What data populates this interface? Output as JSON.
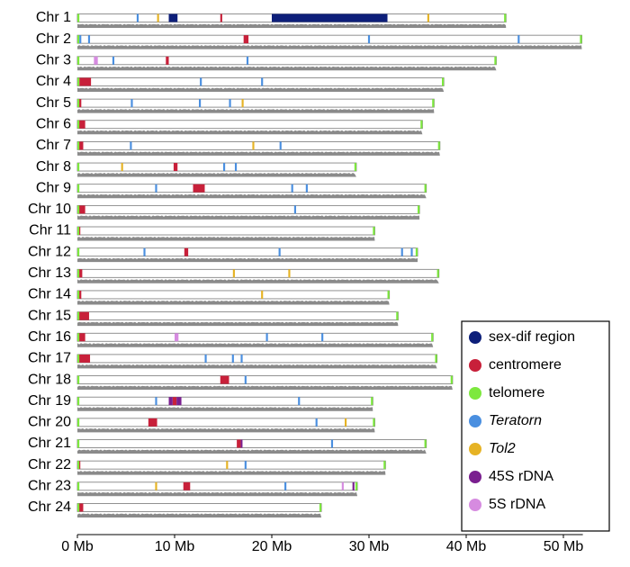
{
  "chart_data": {
    "type": "ideogram",
    "categories": [
      "Chr 1",
      "Chr 2",
      "Chr 3",
      "Chr 4",
      "Chr 5",
      "Chr 6",
      "Chr 7",
      "Chr 8",
      "Chr 9",
      "Chr 10",
      "Chr 11",
      "Chr 12",
      "Chr 13",
      "Chr 14",
      "Chr 15",
      "Chr 16",
      "Chr 17",
      "Chr 18",
      "Chr 19",
      "Chr 20",
      "Chr 21",
      "Chr 22",
      "Chr 23",
      "Chr 24"
    ],
    "values": [
      44.1,
      51.9,
      43.1,
      37.7,
      36.7,
      35.5,
      37.3,
      28.7,
      35.9,
      35.2,
      30.6,
      35.0,
      37.2,
      32.1,
      33.0,
      36.6,
      37.0,
      38.6,
      30.4,
      30.6,
      35.9,
      31.7,
      28.8,
      25.1
    ],
    "xlim": [
      0,
      52
    ],
    "xticks": [
      {
        "value": 0,
        "label": "0 Mb"
      },
      {
        "value": 10,
        "label": "10 Mb"
      },
      {
        "value": 20,
        "label": "20 Mb"
      },
      {
        "value": 30,
        "label": "30 Mb"
      },
      {
        "value": 40,
        "label": "40 Mb"
      },
      {
        "value": 50,
        "label": "50 Mb"
      }
    ],
    "series": [
      {
        "name": "sex-dif region",
        "color": "#0d1f7a",
        "font_style": "normal",
        "regions": [
          [
            [
              9.4,
              10.3
            ],
            [
              20.0,
              31.9
            ]
          ],
          [],
          [],
          [],
          [],
          [],
          [],
          [],
          [],
          [],
          [],
          [],
          [],
          [],
          [],
          [],
          [],
          [],
          [],
          [],
          [],
          [],
          [],
          []
        ]
      },
      {
        "name": "centromere",
        "color": "#c8203a",
        "font_style": "normal",
        "regions": [
          [
            [
              14.7,
              14.9
            ]
          ],
          [
            [
              17.1,
              17.6
            ]
          ],
          [
            [
              9.1,
              9.4
            ]
          ],
          [
            [
              0.2,
              1.4
            ]
          ],
          [
            [
              0.1,
              0.4
            ]
          ],
          [
            [
              0.1,
              0.8
            ]
          ],
          [
            [
              0.1,
              0.6
            ]
          ],
          [
            [
              9.9,
              10.3
            ]
          ],
          [
            [
              11.9,
              13.1
            ]
          ],
          [
            [
              0.1,
              0.8
            ]
          ],
          [
            [
              0.1,
              0.3
            ]
          ],
          [
            [
              11.0,
              11.4
            ]
          ],
          [
            [
              0.1,
              0.5
            ]
          ],
          [
            [
              0.1,
              0.4
            ]
          ],
          [
            [
              0.1,
              1.2
            ]
          ],
          [
            [
              0.1,
              0.8
            ]
          ],
          [
            [
              0.1,
              1.3
            ]
          ],
          [
            [
              14.7,
              15.6
            ]
          ],
          [
            [
              9.8,
              10.2
            ]
          ],
          [
            [
              7.3,
              8.2
            ]
          ],
          [
            [
              16.4,
              16.8
            ]
          ],
          [
            [
              0.1,
              0.3
            ]
          ],
          [
            [
              10.9,
              11.6
            ]
          ],
          [
            [
              0.1,
              0.6
            ]
          ]
        ]
      },
      {
        "name": "telomere",
        "color": "#7de83e",
        "font_style": "normal",
        "regions": [
          [
            [
              0,
              0.2
            ],
            [
              43.9,
              44.1
            ]
          ],
          [
            [
              0,
              0.2
            ],
            [
              51.7,
              51.9
            ]
          ],
          [
            [
              0,
              0.2
            ],
            [
              42.9,
              43.1
            ]
          ],
          [
            [
              0,
              0.2
            ],
            [
              37.5,
              37.7
            ]
          ],
          [
            [
              0,
              0.2
            ],
            [
              36.5,
              36.7
            ]
          ],
          [
            [
              0,
              0.2
            ],
            [
              35.3,
              35.5
            ]
          ],
          [
            [
              0,
              0.2
            ],
            [
              37.1,
              37.3
            ]
          ],
          [
            [
              0,
              0.2
            ],
            [
              28.5,
              28.7
            ]
          ],
          [
            [
              0,
              0.2
            ],
            [
              35.7,
              35.9
            ]
          ],
          [
            [
              0,
              0.2
            ],
            [
              35.0,
              35.2
            ]
          ],
          [
            [
              0,
              0.2
            ],
            [
              30.4,
              30.6
            ]
          ],
          [
            [
              0,
              0.2
            ],
            [
              34.8,
              35.0
            ]
          ],
          [
            [
              0,
              0.2
            ],
            [
              37.0,
              37.2
            ]
          ],
          [
            [
              0,
              0.2
            ],
            [
              31.9,
              32.1
            ]
          ],
          [
            [
              0,
              0.2
            ],
            [
              32.8,
              33.0
            ]
          ],
          [
            [
              0,
              0.2
            ],
            [
              36.4,
              36.6
            ]
          ],
          [
            [
              0,
              0.2
            ],
            [
              36.8,
              37.0
            ]
          ],
          [
            [
              0,
              0.2
            ],
            [
              38.4,
              38.6
            ]
          ],
          [
            [
              0,
              0.2
            ],
            [
              30.2,
              30.4
            ]
          ],
          [
            [
              0,
              0.2
            ],
            [
              30.4,
              30.6
            ]
          ],
          [
            [
              0,
              0.2
            ],
            [
              35.7,
              35.9
            ]
          ],
          [
            [
              0,
              0.2
            ],
            [
              31.5,
              31.7
            ]
          ],
          [
            [
              0,
              0.2
            ],
            [
              28.6,
              28.8
            ]
          ],
          [
            [
              0,
              0.2
            ],
            [
              24.9,
              25.1
            ]
          ]
        ]
      },
      {
        "name": "Teratorn",
        "color": "#4a8fe0",
        "font_style": "italic",
        "regions": [
          [
            [
              6.1,
              6.3
            ]
          ],
          [
            [
              0.2,
              0.4
            ],
            [
              1.1,
              1.3
            ],
            [
              29.9,
              30.1
            ],
            [
              45.3,
              45.5
            ]
          ],
          [
            [
              3.6,
              3.8
            ],
            [
              17.4,
              17.6
            ]
          ],
          [
            [
              12.6,
              12.8
            ],
            [
              18.9,
              19.1
            ]
          ],
          [
            [
              5.5,
              5.7
            ],
            [
              12.5,
              12.7
            ],
            [
              15.6,
              15.8
            ]
          ],
          [],
          [
            [
              5.4,
              5.6
            ],
            [
              20.8,
              21.0
            ]
          ],
          [
            [
              15.0,
              15.2
            ],
            [
              16.2,
              16.4
            ]
          ],
          [
            [
              8.0,
              8.2
            ],
            [
              22.0,
              22.2
            ],
            [
              23.5,
              23.7
            ]
          ],
          [
            [
              22.3,
              22.5
            ]
          ],
          [],
          [
            [
              6.8,
              7.0
            ],
            [
              20.7,
              20.9
            ],
            [
              33.3,
              33.5
            ],
            [
              34.3,
              34.5
            ]
          ],
          [],
          [],
          [],
          [
            [
              19.4,
              19.6
            ],
            [
              25.1,
              25.3
            ]
          ],
          [
            [
              13.1,
              13.3
            ],
            [
              15.9,
              16.1
            ],
            [
              16.8,
              17.0
            ]
          ],
          [
            [
              17.2,
              17.4
            ]
          ],
          [
            [
              8.0,
              8.2
            ],
            [
              22.7,
              22.9
            ]
          ],
          [
            [
              24.5,
              24.7
            ]
          ],
          [
            [
              26.1,
              26.3
            ]
          ],
          [
            [
              17.2,
              17.4
            ]
          ],
          [
            [
              21.3,
              21.5
            ]
          ],
          []
        ]
      },
      {
        "name": "Tol2",
        "color": "#e6b325",
        "font_style": "italic",
        "regions": [
          [
            [
              8.2,
              8.4
            ],
            [
              36.0,
              36.2
            ]
          ],
          [],
          [],
          [],
          [
            [
              16.9,
              17.1
            ]
          ],
          [],
          [
            [
              18.0,
              18.2
            ]
          ],
          [
            [
              4.5,
              4.7
            ]
          ],
          [],
          [],
          [],
          [],
          [
            [
              16.0,
              16.2
            ],
            [
              21.7,
              21.9
            ]
          ],
          [
            [
              18.9,
              19.1
            ]
          ],
          [],
          [],
          [],
          [],
          [],
          [
            [
              27.5,
              27.7
            ]
          ],
          [],
          [
            [
              15.3,
              15.5
            ]
          ],
          [
            [
              8.0,
              8.2
            ]
          ],
          []
        ]
      },
      {
        "name": "45S rDNA",
        "color": "#7a1f8f",
        "font_style": "normal",
        "regions": [
          [],
          [],
          [],
          [],
          [],
          [],
          [],
          [],
          [],
          [],
          [],
          [],
          [],
          [],
          [],
          [],
          [],
          [],
          [
            [
              9.4,
              9.8
            ],
            [
              10.2,
              10.7
            ]
          ],
          [],
          [
            [
              16.8,
              16.9
            ]
          ],
          [],
          [
            [
              28.3,
              28.5
            ]
          ],
          []
        ]
      },
      {
        "name": "5S rDNA",
        "color": "#d68be0",
        "font_style": "normal",
        "regions": [
          [],
          [],
          [
            [
              1.7,
              2.1
            ]
          ],
          [],
          [],
          [],
          [],
          [],
          [],
          [],
          [],
          [],
          [],
          [],
          [],
          [
            [
              10.0,
              10.4
            ]
          ],
          [],
          [],
          [],
          [],
          [],
          [],
          [
            [
              27.2,
              27.4
            ]
          ],
          []
        ]
      }
    ]
  }
}
